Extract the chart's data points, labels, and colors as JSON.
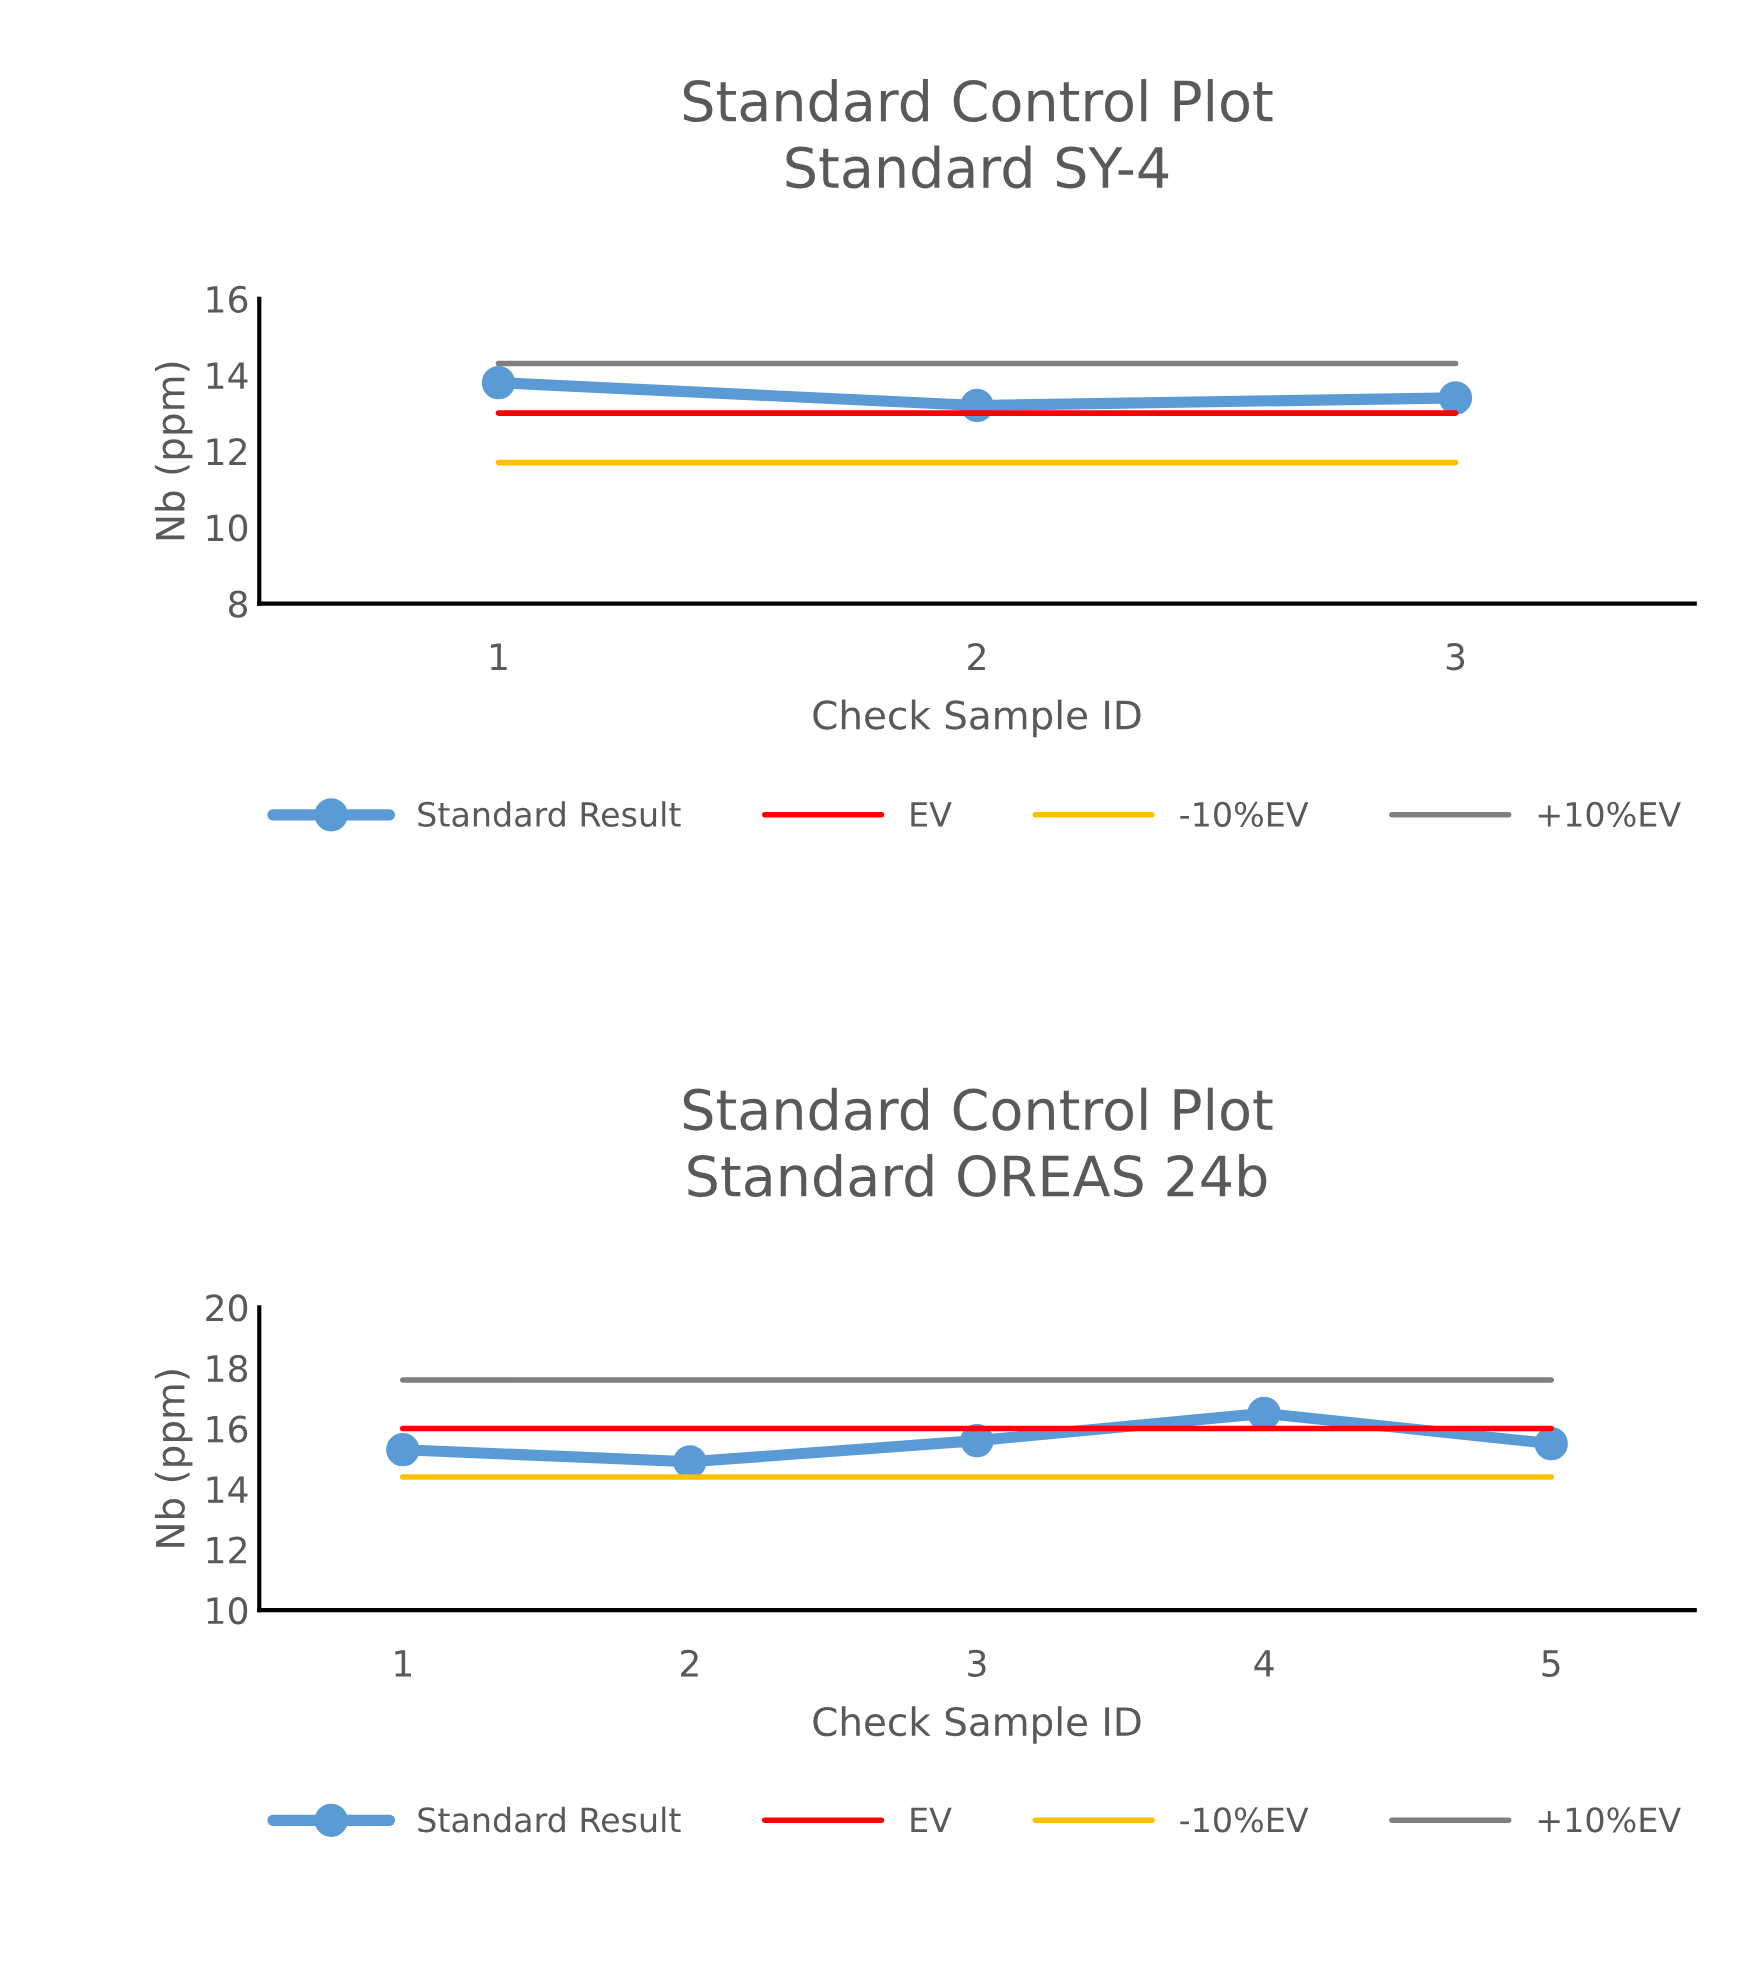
{
  "chart_data": [
    {
      "type": "line",
      "title": "Standard Control Plot\nStandard SY-4",
      "xlabel": "Check Sample ID",
      "ylabel": "Nb (ppm)",
      "categories": [
        "1",
        "2",
        "3"
      ],
      "ylim": [
        8,
        16
      ],
      "yticks": [
        8,
        10,
        12,
        14,
        16
      ],
      "grid": false,
      "legend": "bottom",
      "line_style": "solid",
      "series": [
        {
          "name": "Standard Result",
          "color": "#5b9bd5",
          "marker": "circle",
          "values": [
            13.8,
            13.2,
            13.4
          ]
        },
        {
          "name": "EV",
          "color": "#ff0000",
          "marker": "none",
          "values": [
            13,
            13,
            13
          ]
        },
        {
          "name": "-10%EV",
          "color": "#ffc000",
          "marker": "none",
          "values": [
            11.7,
            11.7,
            11.7
          ]
        },
        {
          "name": "+10%EV",
          "color": "#7f7f7f",
          "marker": "none",
          "values": [
            14.3,
            14.3,
            14.3
          ]
        }
      ]
    },
    {
      "type": "line",
      "title": "Standard Control Plot\nStandard OREAS 24b",
      "xlabel": "Check Sample ID",
      "ylabel": "Nb (ppm)",
      "categories": [
        "1",
        "2",
        "3",
        "4",
        "5"
      ],
      "ylim": [
        10,
        20
      ],
      "yticks": [
        10,
        12,
        14,
        16,
        18,
        20
      ],
      "grid": false,
      "legend": "bottom",
      "line_style": "solid",
      "series": [
        {
          "name": "Standard Result",
          "color": "#5b9bd5",
          "marker": "circle",
          "values": [
            15.3,
            14.9,
            15.6,
            16.5,
            15.5
          ]
        },
        {
          "name": "EV",
          "color": "#ff0000",
          "marker": "none",
          "values": [
            16,
            16,
            16,
            16,
            16
          ]
        },
        {
          "name": "-10%EV",
          "color": "#ffc000",
          "marker": "none",
          "values": [
            14.4,
            14.4,
            14.4,
            14.4,
            14.4
          ]
        },
        {
          "name": "+10%EV",
          "color": "#7f7f7f",
          "marker": "none",
          "values": [
            17.6,
            17.6,
            17.6,
            17.6,
            17.6
          ]
        }
      ]
    }
  ]
}
